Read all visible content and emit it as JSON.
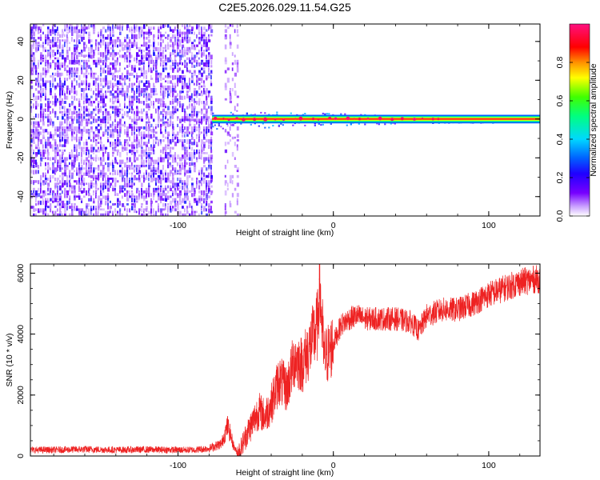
{
  "figure_title": "C2E5.2026.029.11.54.G25",
  "chart_data": [
    {
      "type": "heatmap",
      "title": "",
      "xlabel": "Height of straight line (km)",
      "ylabel": "Frequency (Hz)",
      "xlim": [
        -195,
        133
      ],
      "ylim": [
        -50,
        49
      ],
      "x_ticks": [
        -100,
        0,
        100
      ],
      "y_ticks": [
        -40,
        -20,
        0,
        20,
        40
      ],
      "colorbar": {
        "label": "Normalized spectral amplitude",
        "range": [
          0.0,
          1.0
        ],
        "ticks": [
          0.0,
          0.2,
          0.4,
          0.6,
          0.8
        ],
        "colormap": [
          "#ffffff",
          "#c9a0ff",
          "#7700ff",
          "#2000ff",
          "#0060ff",
          "#00d8ff",
          "#00ff80",
          "#40ff00",
          "#ffff00",
          "#ff9000",
          "#ff0000",
          "#ff1080"
        ]
      },
      "regions": [
        {
          "description": "noise speckle",
          "x_range": [
            -195,
            -78
          ],
          "freq_range": [
            -50,
            49
          ],
          "amplitude_range": [
            0.05,
            0.25
          ]
        },
        {
          "description": "gap",
          "x_range": [
            -77,
            -70
          ],
          "freq_range": [
            -50,
            49
          ],
          "amplitude_range": [
            0.0,
            0.0
          ]
        },
        {
          "description": "noise speckle",
          "x_range": [
            -70,
            -61
          ],
          "freq_range": [
            -50,
            49
          ],
          "amplitude_range": [
            0.05,
            0.15
          ]
        },
        {
          "description": "signal line",
          "x_range": [
            -78,
            133
          ],
          "freq_center": 0,
          "freq_halfwidth": 2,
          "amplitude_range": [
            0.8,
            1.0
          ]
        }
      ]
    },
    {
      "type": "line",
      "title": "",
      "xlabel": "Height of straight line (km)",
      "ylabel": "SNR (10 * v/v)",
      "xlim": [
        -195,
        133
      ],
      "ylim": [
        0,
        6300
      ],
      "x_ticks": [
        -100,
        0,
        100
      ],
      "y_ticks": [
        0,
        2000,
        4000,
        6000
      ],
      "color": "#ee2222",
      "series": [
        {
          "x": [
            -195,
            -180,
            -160,
            -140,
            -120,
            -100,
            -90,
            -80,
            -72,
            -68,
            -64,
            -62,
            -60,
            -56,
            -52,
            -48,
            -44,
            -40,
            -35,
            -30,
            -25,
            -20,
            -15,
            -10,
            -9,
            -6,
            -3,
            0,
            5,
            10,
            15,
            20,
            30,
            40,
            50,
            55,
            60,
            70,
            80,
            90,
            100,
            110,
            120,
            130,
            133
          ],
          "values": [
            200,
            200,
            220,
            200,
            210,
            200,
            200,
            250,
            400,
            1000,
            300,
            120,
            200,
            700,
            1100,
            1500,
            1300,
            1700,
            2500,
            2200,
            3200,
            3000,
            3600,
            4300,
            5800,
            3200,
            3400,
            3700,
            4300,
            4500,
            4600,
            4500,
            4500,
            4500,
            4400,
            4100,
            4600,
            4800,
            4800,
            5000,
            5300,
            5500,
            5700,
            5800,
            5800
          ]
        }
      ]
    }
  ]
}
